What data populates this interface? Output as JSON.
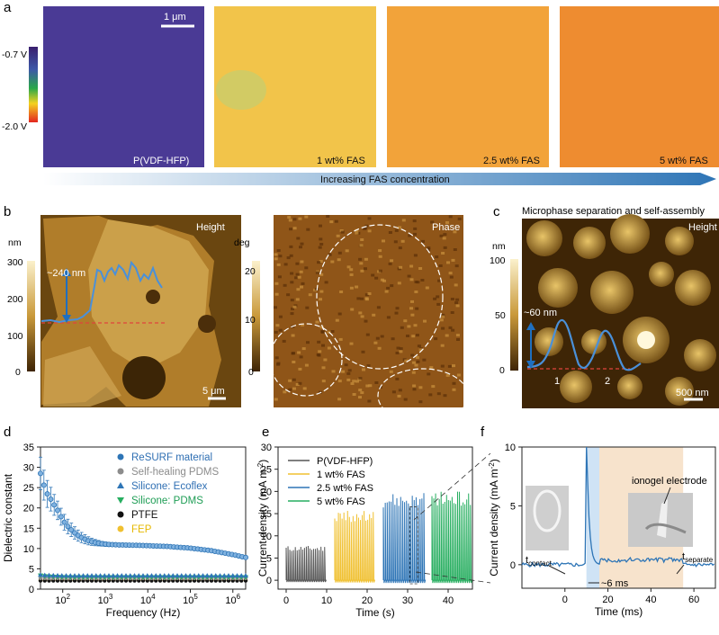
{
  "panel_letters": [
    "a",
    "b",
    "c",
    "d",
    "e",
    "f"
  ],
  "colors": {
    "blue": "#2e75b6",
    "gray": "#8c8c8c",
    "green": "#27ae60",
    "black": "#111111",
    "yellow": "#f0c030",
    "text_blue": "#2f6fb3",
    "text_gray": "#8c8c8c",
    "text_green": "#1e9d55",
    "text_yellow": "#e6b800",
    "shade_orange": "#f7e3cc",
    "shade_blue": "#cfe3f5"
  },
  "panel_a": {
    "scalebar": "1 μm",
    "colorbar": {
      "top": "-0.7 V",
      "bottom": "-2.0 V"
    },
    "images": [
      {
        "label": "P(VDF-HFP)",
        "fill": "#4a3a95"
      },
      {
        "label": "1 wt% FAS",
        "fill": "#f2c44a"
      },
      {
        "label": "2.5 wt% FAS",
        "fill": "#f2a33a"
      },
      {
        "label": "5 wt% FAS",
        "fill": "#ee8c30"
      }
    ],
    "arrow_label": "Increasing FAS concentration"
  },
  "panel_b": {
    "height": {
      "title": "Height",
      "unit": "nm",
      "ticks": [
        "300",
        "200",
        "100",
        "0"
      ],
      "annotation": "~240 nm",
      "scalebar": "5 μm"
    },
    "phase": {
      "title": "Phase",
      "unit": "deg",
      "ticks": [
        "20",
        "10",
        "0"
      ]
    }
  },
  "panel_c": {
    "title": "Microphase separation and self-assembly",
    "image_title": "Height",
    "unit": "nm",
    "ticks": [
      "100",
      "50",
      "0"
    ],
    "annotation": "~60 nm",
    "markers": [
      "1",
      "2"
    ],
    "scalebar": "500 nm"
  },
  "chart_data": [
    {
      "panel": "d",
      "type": "scatter",
      "xlabel": "Frequency (Hz)",
      "ylabel": "Dielectric constant",
      "x_scale": "log",
      "xlim": [
        30,
        2000000
      ],
      "ylim": [
        0,
        35
      ],
      "yticks": [
        0,
        5,
        10,
        15,
        20,
        25,
        30,
        35
      ],
      "xtick_labels": [
        {
          "base": "10",
          "exp": "2",
          "value": 100
        },
        {
          "base": "10",
          "exp": "3",
          "value": 1000
        },
        {
          "base": "10",
          "exp": "4",
          "value": 10000
        },
        {
          "base": "10",
          "exp": "5",
          "value": 100000
        },
        {
          "base": "10",
          "exp": "6",
          "value": 1000000
        }
      ],
      "series": [
        {
          "name": "ReSURF material",
          "marker": "circle",
          "x": [
            30,
            40,
            50,
            65,
            80,
            100,
            130,
            170,
            220,
            300,
            400,
            550,
            800,
            1200,
            2000,
            5000,
            10000,
            30000,
            100000,
            300000,
            1000000,
            2000000
          ],
          "y": [
            28.5,
            24,
            22.5,
            20.5,
            19,
            17,
            15.5,
            14.3,
            13.3,
            12.5,
            11.9,
            11.5,
            11.2,
            11.0,
            10.9,
            10.8,
            10.7,
            10.5,
            10.1,
            9.5,
            8.5,
            7.8
          ],
          "err": [
            4,
            3.5,
            3,
            2.5,
            2.2,
            2,
            1.8,
            1.6,
            1.4,
            1.2,
            1,
            0.8,
            0.6,
            0.5,
            0.4,
            0.4,
            0.4,
            0.4,
            0.4,
            0.3,
            0.3,
            0.3
          ]
        },
        {
          "name": "Self-healing PDMS",
          "marker": "circle",
          "x": [
            30,
            100,
            1000,
            10000,
            100000,
            1000000,
            2000000
          ],
          "y": [
            2.7,
            2.7,
            2.7,
            2.7,
            2.7,
            2.7,
            2.7
          ]
        },
        {
          "name": "Silicone: Ecoflex",
          "marker": "triangle-up",
          "x": [
            30,
            40,
            100,
            1000,
            10000,
            100000,
            1000000,
            2000000
          ],
          "y": [
            3.5,
            3.4,
            3.3,
            3.3,
            3.3,
            3.3,
            3.3,
            3.3
          ]
        },
        {
          "name": "Silicone: PDMS",
          "marker": "triangle-down",
          "x": [
            30,
            40,
            100,
            1000,
            10000,
            100000,
            1000000,
            2000000
          ],
          "y": [
            3.4,
            3.2,
            3.0,
            3.0,
            3.0,
            3.0,
            3.0,
            3.0
          ]
        },
        {
          "name": "PTFE",
          "marker": "circle",
          "x": [
            30,
            100,
            1000,
            10000,
            100000,
            1000000,
            2000000
          ],
          "y": [
            2.1,
            2.1,
            2.1,
            2.1,
            2.1,
            2.1,
            2.1
          ]
        },
        {
          "name": "FEP",
          "marker": "circle",
          "x": [
            30,
            100,
            1000,
            10000,
            100000,
            1000000,
            2000000
          ],
          "y": [
            2.2,
            2.2,
            2.2,
            2.2,
            2.2,
            2.2,
            2.2
          ]
        }
      ]
    },
    {
      "panel": "e",
      "type": "line",
      "xlabel": "Time (s)",
      "ylabel": "Current density (mA m",
      "ylabel_sup": "-2",
      "ylabel_end": ")",
      "xlim": [
        -2,
        46
      ],
      "ylim": [
        -2,
        30
      ],
      "xticks": [
        0,
        10,
        20,
        30,
        40
      ],
      "yticks": [
        0,
        5,
        10,
        15,
        20,
        25,
        30
      ],
      "series": [
        {
          "name": "P(VDF-HFP)",
          "t_start": 0,
          "t_end": 9.5,
          "pulses": 22,
          "peak": 7.2,
          "neg": -0.4
        },
        {
          "name": "1 wt% FAS",
          "t_start": 12,
          "t_end": 21.5,
          "pulses": 22,
          "peak": 14.5,
          "neg": -0.5
        },
        {
          "name": "2.5 wt% FAS",
          "t_start": 24,
          "t_end": 34,
          "pulses": 22,
          "peak": 18.2,
          "neg": -0.6
        },
        {
          "name": "5 wt% FAS",
          "t_start": 36,
          "t_end": 45.5,
          "pulses": 22,
          "peak": 18.5,
          "neg": -0.6
        }
      ]
    },
    {
      "panel": "f",
      "type": "line",
      "xlabel": "Time (ms)",
      "ylabel": "Current density (mA m",
      "ylabel_sup": "-2",
      "ylabel_end": ")",
      "xlim": [
        -20,
        70
      ],
      "ylim": [
        -2,
        10
      ],
      "xticks": [
        0,
        20,
        40,
        60
      ],
      "yticks": [
        0,
        5,
        10
      ],
      "t_contact_ms": 10,
      "t_separate_ms": 55,
      "peak_ms": 10,
      "peak_value": 10,
      "baseline": 0
    }
  ],
  "panel_f_annotations": {
    "t_contact": "t",
    "t_contact_sub": "contact",
    "t_separate": "t",
    "t_separate_sub": "separate",
    "duration": "~6 ms",
    "electrode_label": "ionogel electrode"
  }
}
